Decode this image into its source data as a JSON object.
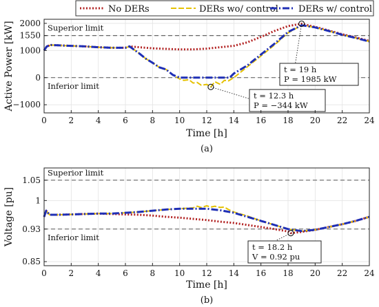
{
  "legend": [
    {
      "name": "No DERs",
      "color": "#b22222",
      "dash": "2,2.5",
      "width": 3
    },
    {
      "name": "DERs wo/ control",
      "color": "#e5c100",
      "dash": "8,3",
      "width": 2
    },
    {
      "name": "DERs w/ control",
      "color": "#1f2fb5",
      "dash": "10,3,2,3",
      "width": 3
    }
  ],
  "chart_data": [
    {
      "type": "line",
      "caption": "(a)",
      "xlabel": "Time [h]",
      "ylabel": "Active Power [kW]",
      "xlim": [
        0,
        24
      ],
      "ylim": [
        -1300,
        2150
      ],
      "xticks": [
        0,
        2,
        4,
        6,
        8,
        10,
        12,
        14,
        16,
        18,
        20,
        22,
        24
      ],
      "yticks": [
        -1000,
        0,
        1000,
        1550,
        2000
      ],
      "yticklabels": [
        "−1000",
        "0",
        "1000",
        "1550",
        "2000"
      ],
      "grid": true,
      "limits": [
        {
          "label": "Superior limit",
          "value": 1550
        },
        {
          "label": "Inferior limit",
          "value": 0
        }
      ],
      "series": [
        {
          "name": "No DERs",
          "x": [
            0,
            0.2,
            0.5,
            1,
            2,
            3,
            4,
            5,
            6,
            6.3,
            7,
            8,
            9,
            10,
            11,
            12,
            13,
            14,
            15,
            16,
            17,
            18,
            19,
            20,
            21,
            22,
            23,
            24
          ],
          "y": [
            1000,
            1150,
            1200,
            1190,
            1170,
            1150,
            1120,
            1100,
            1100,
            1150,
            1120,
            1080,
            1060,
            1040,
            1040,
            1070,
            1120,
            1170,
            1300,
            1500,
            1720,
            1900,
            1985,
            1870,
            1740,
            1600,
            1480,
            1350
          ]
        },
        {
          "name": "DERs wo/ control",
          "x": [
            0,
            0.2,
            0.5,
            1,
            2,
            3,
            4,
            5,
            6,
            6.3,
            7,
            7.5,
            8,
            8.5,
            9,
            9.5,
            10,
            10.3,
            10.7,
            11,
            11.3,
            11.6,
            12,
            12.3,
            12.6,
            13,
            13.3,
            13.6,
            14,
            14.5,
            15,
            15.5,
            16,
            17,
            18,
            19,
            20,
            21,
            22,
            23,
            24
          ],
          "y": [
            1000,
            1150,
            1200,
            1190,
            1170,
            1150,
            1120,
            1100,
            1100,
            1150,
            900,
            700,
            550,
            380,
            300,
            100,
            -50,
            -100,
            -80,
            -200,
            -180,
            -280,
            -250,
            -344,
            -150,
            -250,
            -100,
            -120,
            0,
            200,
            400,
            600,
            800,
            1200,
            1650,
            1930,
            1850,
            1720,
            1580,
            1460,
            1330
          ]
        },
        {
          "name": "DERs w/ control",
          "x": [
            0,
            0.2,
            0.5,
            1,
            2,
            3,
            4,
            5,
            6,
            6.3,
            7,
            7.5,
            8,
            8.5,
            9,
            9.5,
            10,
            10.3,
            11,
            12,
            13,
            13.7,
            14,
            14.5,
            15,
            15.5,
            16,
            17,
            18,
            19,
            20,
            21,
            22,
            23,
            24
          ],
          "y": [
            1000,
            1150,
            1200,
            1190,
            1170,
            1150,
            1120,
            1100,
            1100,
            1150,
            900,
            700,
            550,
            380,
            300,
            100,
            0,
            0,
            0,
            0,
            0,
            0,
            150,
            300,
            450,
            650,
            850,
            1250,
            1680,
            1930,
            1850,
            1720,
            1580,
            1460,
            1330
          ]
        }
      ],
      "annotations": [
        {
          "lines": [
            "t = 19 h",
            "P = 1985 kW"
          ],
          "x": 19,
          "y": 1985
        },
        {
          "lines": [
            "t = 12.3 h",
            "P = −344 kW"
          ],
          "x": 12.3,
          "y": -344
        }
      ]
    },
    {
      "type": "line",
      "caption": "(b)",
      "xlabel": "Time [h]",
      "ylabel": "Voltage [pu]",
      "xlim": [
        0,
        24
      ],
      "ylim": [
        0.84,
        1.08
      ],
      "xticks": [
        0,
        2,
        4,
        6,
        8,
        10,
        12,
        14,
        16,
        18,
        20,
        22,
        24
      ],
      "yticks": [
        0.85,
        0.93,
        1,
        1.05
      ],
      "yticklabels": [
        "0.85",
        "0.93",
        "1",
        "1.05"
      ],
      "grid": true,
      "limits": [
        {
          "label": "Superior limit",
          "value": 1.05
        },
        {
          "label": "Inferior limit",
          "value": 0.93
        }
      ],
      "series": [
        {
          "name": "No DERs",
          "x": [
            0,
            0.15,
            0.4,
            1,
            2,
            3,
            4,
            5,
            6,
            7,
            8,
            9,
            10,
            11,
            12,
            13,
            14,
            15,
            16,
            17,
            18,
            18.2,
            19,
            20,
            21,
            22,
            23,
            24
          ],
          "y": [
            0.96,
            0.975,
            0.965,
            0.965,
            0.966,
            0.967,
            0.968,
            0.967,
            0.966,
            0.965,
            0.963,
            0.96,
            0.958,
            0.955,
            0.952,
            0.948,
            0.945,
            0.94,
            0.935,
            0.93,
            0.924,
            0.92,
            0.923,
            0.928,
            0.935,
            0.942,
            0.95,
            0.96
          ]
        },
        {
          "name": "DERs wo/ control",
          "x": [
            0,
            0.15,
            0.4,
            1,
            2,
            3,
            4,
            5,
            6,
            7,
            8,
            9,
            10,
            11,
            11.3,
            11.6,
            12,
            12.3,
            12.6,
            13,
            13.3,
            13.6,
            14,
            15,
            16,
            17,
            18,
            19,
            20,
            21,
            22,
            23,
            24
          ],
          "y": [
            0.96,
            0.975,
            0.965,
            0.965,
            0.966,
            0.967,
            0.968,
            0.968,
            0.97,
            0.972,
            0.975,
            0.978,
            0.98,
            0.982,
            0.986,
            0.983,
            0.987,
            0.984,
            0.986,
            0.983,
            0.984,
            0.978,
            0.972,
            0.962,
            0.95,
            0.94,
            0.93,
            0.925,
            0.928,
            0.935,
            0.942,
            0.95,
            0.96
          ]
        },
        {
          "name": "DERs w/ control",
          "x": [
            0,
            0.15,
            0.4,
            1,
            2,
            3,
            4,
            5,
            6,
            7,
            8,
            9,
            10,
            11,
            12,
            13,
            14,
            15,
            16,
            17,
            18,
            19,
            20,
            21,
            22,
            23,
            24
          ],
          "y": [
            0.96,
            0.975,
            0.965,
            0.965,
            0.966,
            0.967,
            0.968,
            0.968,
            0.97,
            0.972,
            0.975,
            0.978,
            0.98,
            0.98,
            0.98,
            0.976,
            0.97,
            0.96,
            0.95,
            0.94,
            0.93,
            0.925,
            0.928,
            0.935,
            0.942,
            0.95,
            0.96
          ]
        }
      ],
      "annotations": [
        {
          "lines": [
            "t = 18.2 h",
            "V = 0.92 pu"
          ],
          "x": 18.2,
          "y": 0.92
        }
      ]
    }
  ]
}
